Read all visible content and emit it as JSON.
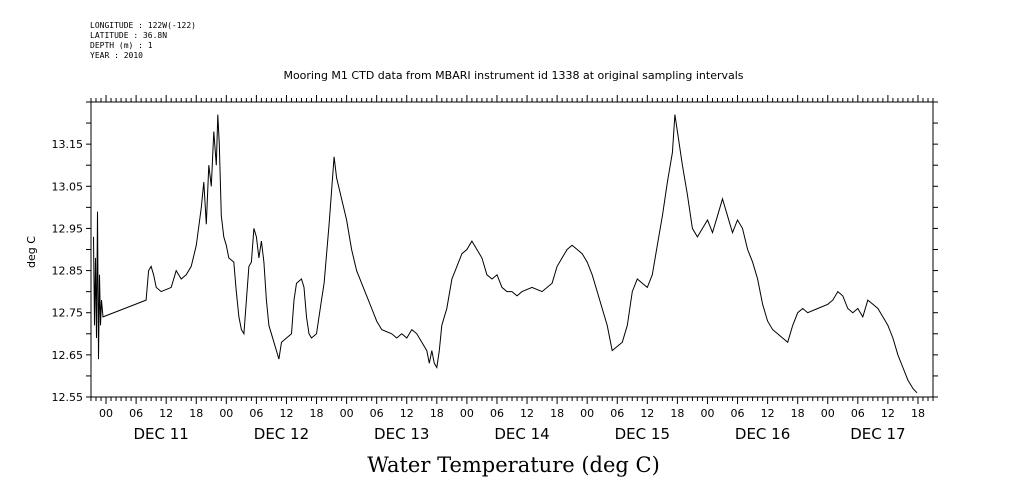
{
  "meta": {
    "longitude": "LONGITUDE : 122W(-122)",
    "latitude": "LATITUDE : 36.8N",
    "depth": "DEPTH (m) : 1",
    "year": "YEAR : 2010"
  },
  "chart_data": {
    "type": "line",
    "title": "Mooring M1 CTD data from MBARI instrument id 1338 at original sampling intervals",
    "xlabel": "Water Temperature (deg C)",
    "ylabel": "deg C",
    "x_unit": "hours since 2010-12-11 00:00",
    "xlim": [
      -3,
      165
    ],
    "ylim": [
      12.55,
      13.25
    ],
    "yticks": [
      "12.55",
      "12.65",
      "12.75",
      "12.85",
      "12.95",
      "13.05",
      "13.15"
    ],
    "xticks_hours": [
      0,
      6,
      12,
      18,
      24,
      30,
      36,
      42,
      48,
      54,
      60,
      66,
      72,
      78,
      84,
      90,
      96,
      102,
      108,
      114,
      120,
      126,
      132,
      138,
      144,
      150,
      156,
      162
    ],
    "xtick_labels": [
      "00",
      "06",
      "12",
      "18",
      "00",
      "06",
      "12",
      "18",
      "00",
      "06",
      "12",
      "18",
      "00",
      "06",
      "12",
      "18",
      "00",
      "06",
      "12",
      "18",
      "00",
      "06",
      "12",
      "18",
      "00",
      "06",
      "12",
      "18"
    ],
    "day_labels": [
      {
        "label": "DEC 11",
        "x": 11
      },
      {
        "label": "DEC 12",
        "x": 35
      },
      {
        "label": "DEC 13",
        "x": 59
      },
      {
        "label": "DEC 14",
        "x": 83
      },
      {
        "label": "DEC 15",
        "x": 107
      },
      {
        "label": "DEC 16",
        "x": 131
      },
      {
        "label": "DEC 17",
        "x": 154
      }
    ],
    "grid": false,
    "series": [
      {
        "values": [
          [
            -2.5,
            12.93
          ],
          [
            -2.3,
            12.72
          ],
          [
            -2.1,
            12.88
          ],
          [
            -1.9,
            12.69
          ],
          [
            -1.7,
            12.99
          ],
          [
            -1.5,
            12.64
          ],
          [
            -1.3,
            12.84
          ],
          [
            -1.1,
            12.72
          ],
          [
            -0.9,
            12.78
          ],
          [
            -0.6,
            12.74
          ],
          [
            8,
            12.78
          ],
          [
            8.5,
            12.85
          ],
          [
            9,
            12.86
          ],
          [
            9.5,
            12.84
          ],
          [
            10,
            12.81
          ],
          [
            11,
            12.8
          ],
          [
            13,
            12.81
          ],
          [
            14,
            12.85
          ],
          [
            15,
            12.83
          ],
          [
            16,
            12.84
          ],
          [
            17,
            12.86
          ],
          [
            18,
            12.91
          ],
          [
            19,
            13.0
          ],
          [
            19.5,
            13.06
          ],
          [
            20,
            12.96
          ],
          [
            20.5,
            13.1
          ],
          [
            21,
            13.05
          ],
          [
            21.5,
            13.18
          ],
          [
            22,
            13.1
          ],
          [
            22.3,
            13.22
          ],
          [
            22.6,
            13.15
          ],
          [
            23,
            12.98
          ],
          [
            23.5,
            12.93
          ],
          [
            24,
            12.91
          ],
          [
            24.5,
            12.88
          ],
          [
            25.5,
            12.87
          ],
          [
            26,
            12.8
          ],
          [
            26.5,
            12.74
          ],
          [
            27,
            12.71
          ],
          [
            27.5,
            12.7
          ],
          [
            28,
            12.78
          ],
          [
            28.5,
            12.86
          ],
          [
            29,
            12.87
          ],
          [
            29.5,
            12.95
          ],
          [
            30,
            12.93
          ],
          [
            30.5,
            12.88
          ],
          [
            31,
            12.92
          ],
          [
            31.5,
            12.87
          ],
          [
            32,
            12.78
          ],
          [
            32.5,
            12.72
          ],
          [
            33,
            12.7
          ],
          [
            33.5,
            12.68
          ],
          [
            34,
            12.66
          ],
          [
            34.5,
            12.64
          ],
          [
            35,
            12.68
          ],
          [
            36,
            12.69
          ],
          [
            37,
            12.7
          ],
          [
            37.5,
            12.78
          ],
          [
            38,
            12.82
          ],
          [
            39,
            12.83
          ],
          [
            39.5,
            12.81
          ],
          [
            40,
            12.74
          ],
          [
            40.5,
            12.7
          ],
          [
            41,
            12.69
          ],
          [
            42,
            12.7
          ],
          [
            43,
            12.78
          ],
          [
            43.5,
            12.82
          ],
          [
            44,
            12.89
          ],
          [
            44.5,
            12.96
          ],
          [
            45,
            13.04
          ],
          [
            45.5,
            13.12
          ],
          [
            46,
            13.07
          ],
          [
            47,
            13.02
          ],
          [
            48,
            12.97
          ],
          [
            49,
            12.9
          ],
          [
            50,
            12.85
          ],
          [
            51,
            12.82
          ],
          [
            52,
            12.79
          ],
          [
            53,
            12.76
          ],
          [
            54,
            12.73
          ],
          [
            55,
            12.71
          ],
          [
            57,
            12.7
          ],
          [
            58,
            12.69
          ],
          [
            59,
            12.7
          ],
          [
            60,
            12.69
          ],
          [
            61,
            12.71
          ],
          [
            62,
            12.7
          ],
          [
            63,
            12.68
          ],
          [
            64,
            12.66
          ],
          [
            64.5,
            12.63
          ],
          [
            65,
            12.66
          ],
          [
            65.5,
            12.63
          ],
          [
            66,
            12.62
          ],
          [
            66.5,
            12.66
          ],
          [
            67,
            12.72
          ],
          [
            68,
            12.76
          ],
          [
            69,
            12.83
          ],
          [
            70,
            12.86
          ],
          [
            71,
            12.89
          ],
          [
            72,
            12.9
          ],
          [
            73,
            12.92
          ],
          [
            74,
            12.9
          ],
          [
            75,
            12.88
          ],
          [
            76,
            12.84
          ],
          [
            77,
            12.83
          ],
          [
            78,
            12.84
          ],
          [
            79,
            12.81
          ],
          [
            80,
            12.8
          ],
          [
            81,
            12.8
          ],
          [
            82,
            12.79
          ],
          [
            83,
            12.8
          ],
          [
            85,
            12.81
          ],
          [
            87,
            12.8
          ],
          [
            89,
            12.82
          ],
          [
            90,
            12.86
          ],
          [
            91,
            12.88
          ],
          [
            92,
            12.9
          ],
          [
            93,
            12.91
          ],
          [
            94,
            12.9
          ],
          [
            95,
            12.89
          ],
          [
            96,
            12.87
          ],
          [
            97,
            12.84
          ],
          [
            98,
            12.8
          ],
          [
            99,
            12.76
          ],
          [
            100,
            12.72
          ],
          [
            101,
            12.66
          ],
          [
            102,
            12.67
          ],
          [
            103,
            12.68
          ],
          [
            104,
            12.72
          ],
          [
            105,
            12.8
          ],
          [
            106,
            12.83
          ],
          [
            107,
            12.82
          ],
          [
            108,
            12.81
          ],
          [
            109,
            12.84
          ],
          [
            110,
            12.91
          ],
          [
            111,
            12.98
          ],
          [
            112,
            13.06
          ],
          [
            113,
            13.13
          ],
          [
            113.5,
            13.22
          ],
          [
            114,
            13.18
          ],
          [
            115,
            13.1
          ],
          [
            116,
            13.03
          ],
          [
            117,
            12.95
          ],
          [
            118,
            12.93
          ],
          [
            119,
            12.95
          ],
          [
            120,
            12.97
          ],
          [
            121,
            12.94
          ],
          [
            122,
            12.98
          ],
          [
            123,
            13.02
          ],
          [
            124,
            12.98
          ],
          [
            125,
            12.94
          ],
          [
            126,
            12.97
          ],
          [
            127,
            12.95
          ],
          [
            128,
            12.9
          ],
          [
            129,
            12.87
          ],
          [
            130,
            12.83
          ],
          [
            131,
            12.77
          ],
          [
            132,
            12.73
          ],
          [
            133,
            12.71
          ],
          [
            134,
            12.7
          ],
          [
            135,
            12.69
          ],
          [
            136,
            12.68
          ],
          [
            137,
            12.72
          ],
          [
            138,
            12.75
          ],
          [
            139,
            12.76
          ],
          [
            140,
            12.75
          ],
          [
            142,
            12.76
          ],
          [
            144,
            12.77
          ],
          [
            145,
            12.78
          ],
          [
            146,
            12.8
          ],
          [
            147,
            12.79
          ],
          [
            148,
            12.76
          ],
          [
            149,
            12.75
          ],
          [
            150,
            12.76
          ],
          [
            151,
            12.74
          ],
          [
            152,
            12.78
          ],
          [
            153,
            12.77
          ],
          [
            154,
            12.76
          ],
          [
            155,
            12.74
          ],
          [
            156,
            12.72
          ],
          [
            157,
            12.69
          ],
          [
            158,
            12.65
          ],
          [
            159,
            12.62
          ],
          [
            160,
            12.59
          ],
          [
            161,
            12.57
          ],
          [
            161.8,
            12.56
          ]
        ]
      }
    ]
  }
}
